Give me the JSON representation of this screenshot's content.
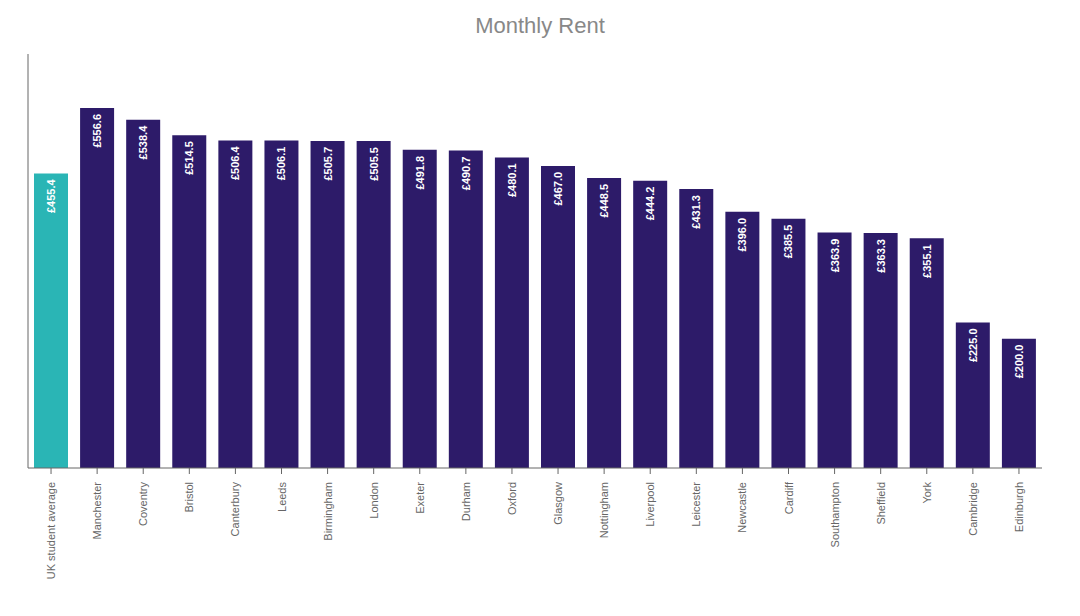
{
  "chart_data": {
    "type": "bar",
    "title": "Monthly Rent",
    "categories": [
      "UK student average",
      "Manchester",
      "Coventry",
      "Bristol",
      "Canterbury",
      "Leeds",
      "Birmingham",
      "London",
      "Exeter",
      "Durham",
      "Oxford",
      "Glasgow",
      "Nottingham",
      "Liverpool",
      "Leicester",
      "Newcastle",
      "Cardiff",
      "Southampton",
      "Sheffield",
      "York",
      "Cambridge",
      "Edinburgh"
    ],
    "values": [
      455.4,
      556.6,
      538.4,
      514.5,
      506.4,
      506.1,
      505.7,
      505.5,
      491.8,
      490.7,
      480.1,
      467.0,
      448.5,
      444.2,
      431.3,
      396.0,
      385.5,
      363.9,
      363.3,
      355.1,
      225.0,
      200.0
    ],
    "value_labels": [
      "£455.4",
      "£556.6",
      "£538.4",
      "£514.5",
      "£506.4",
      "£506.1",
      "£505.7",
      "£505.5",
      "£491.8",
      "£490.7",
      "£480.1",
      "£467.0",
      "£448.5",
      "£444.2",
      "£431.3",
      "£396.0",
      "£385.5",
      "£363.9",
      "£363.3",
      "£355.1",
      "£225.0",
      "£200.0"
    ],
    "colors": [
      "#2ab5b5",
      "#2d1b69",
      "#2d1b69",
      "#2d1b69",
      "#2d1b69",
      "#2d1b69",
      "#2d1b69",
      "#2d1b69",
      "#2d1b69",
      "#2d1b69",
      "#2d1b69",
      "#2d1b69",
      "#2d1b69",
      "#2d1b69",
      "#2d1b69",
      "#2d1b69",
      "#2d1b69",
      "#2d1b69",
      "#2d1b69",
      "#2d1b69",
      "#2d1b69",
      "#2d1b69"
    ],
    "ylim": [
      0,
      640
    ],
    "data_labels": true,
    "tick_labels": "x",
    "grid": false
  }
}
